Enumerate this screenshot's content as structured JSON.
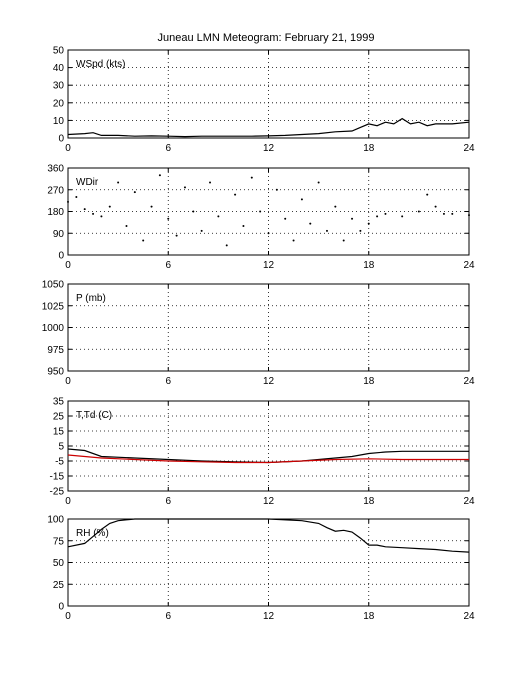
{
  "title": "Juneau LMN Meteogram:  February 21, 1999",
  "chart_data": [
    {
      "type": "line",
      "label": "WSpd (kts)",
      "xlim": [
        0,
        24
      ],
      "xticks": [
        0,
        6,
        12,
        18,
        24
      ],
      "ylim": [
        0,
        50
      ],
      "yticks": [
        0,
        10,
        20,
        30,
        40,
        50
      ],
      "grid": true,
      "series": [
        {
          "color": "#000000",
          "points": [
            [
              0,
              2
            ],
            [
              1,
              2.5
            ],
            [
              1.5,
              3
            ],
            [
              2,
              1.5
            ],
            [
              3,
              1.5
            ],
            [
              4,
              1
            ],
            [
              5,
              1.2
            ],
            [
              6,
              1
            ],
            [
              7,
              0.8
            ],
            [
              8,
              1
            ],
            [
              9,
              1
            ],
            [
              10,
              1
            ],
            [
              11,
              1
            ],
            [
              12,
              1.2
            ],
            [
              13,
              1.5
            ],
            [
              14,
              2
            ],
            [
              15,
              2.5
            ],
            [
              16,
              3.5
            ],
            [
              17,
              4
            ],
            [
              17.5,
              6
            ],
            [
              18,
              8
            ],
            [
              18.5,
              7
            ],
            [
              19,
              9
            ],
            [
              19.5,
              8
            ],
            [
              20,
              11
            ],
            [
              20.5,
              8
            ],
            [
              21,
              9
            ],
            [
              21.5,
              7
            ],
            [
              22,
              8
            ],
            [
              23,
              8
            ],
            [
              24,
              9
            ]
          ]
        }
      ]
    },
    {
      "type": "scatter",
      "label": "WDir",
      "xlim": [
        0,
        24
      ],
      "xticks": [
        0,
        6,
        12,
        18,
        24
      ],
      "ylim": [
        0,
        360
      ],
      "yticks": [
        0,
        90,
        180,
        270,
        360
      ],
      "grid": true,
      "series": [
        {
          "color": "#000000",
          "points": [
            [
              0,
              220
            ],
            [
              0.5,
              240
            ],
            [
              1,
              190
            ],
            [
              1.5,
              170
            ],
            [
              2,
              160
            ],
            [
              2.5,
              200
            ],
            [
              3,
              300
            ],
            [
              3.5,
              120
            ],
            [
              4,
              260
            ],
            [
              4.5,
              60
            ],
            [
              5,
              200
            ],
            [
              5.5,
              330
            ],
            [
              6,
              150
            ],
            [
              6.5,
              80
            ],
            [
              7,
              280
            ],
            [
              7.5,
              180
            ],
            [
              8,
              100
            ],
            [
              8.5,
              300
            ],
            [
              9,
              160
            ],
            [
              9.5,
              40
            ],
            [
              10,
              250
            ],
            [
              10.5,
              120
            ],
            [
              11,
              320
            ],
            [
              11.5,
              180
            ],
            [
              12,
              90
            ],
            [
              12.5,
              270
            ],
            [
              13,
              150
            ],
            [
              13.5,
              60
            ],
            [
              14,
              230
            ],
            [
              14.5,
              130
            ],
            [
              15,
              300
            ],
            [
              15.5,
              100
            ],
            [
              16,
              200
            ],
            [
              16.5,
              60
            ],
            [
              17,
              150
            ],
            [
              17.5,
              100
            ],
            [
              18,
              130
            ],
            [
              18.5,
              160
            ],
            [
              19,
              170
            ],
            [
              20,
              160
            ],
            [
              21,
              180
            ],
            [
              21.5,
              250
            ],
            [
              22,
              200
            ],
            [
              22.5,
              170
            ],
            [
              23,
              170
            ],
            [
              24,
              165
            ]
          ]
        }
      ]
    },
    {
      "type": "line",
      "label": "P (mb)",
      "xlim": [
        0,
        24
      ],
      "xticks": [
        0,
        6,
        12,
        18,
        24
      ],
      "ylim": [
        950,
        1050
      ],
      "yticks": [
        950,
        975,
        1000,
        1025,
        1050
      ],
      "grid": true,
      "series": []
    },
    {
      "type": "line",
      "label": "T,Td (C)",
      "xlim": [
        0,
        24
      ],
      "xticks": [
        0,
        6,
        12,
        18,
        24
      ],
      "ylim": [
        -25,
        35
      ],
      "yticks": [
        -25,
        -15,
        -5,
        5,
        15,
        25,
        35
      ],
      "grid": true,
      "series": [
        {
          "color": "#000000",
          "points": [
            [
              0,
              3
            ],
            [
              1,
              2
            ],
            [
              2,
              -2
            ],
            [
              4,
              -3
            ],
            [
              6,
              -4
            ],
            [
              8,
              -5
            ],
            [
              10,
              -5.5
            ],
            [
              12,
              -6
            ],
            [
              14,
              -5
            ],
            [
              16,
              -3
            ],
            [
              17,
              -2
            ],
            [
              18,
              0
            ],
            [
              19,
              1
            ],
            [
              20,
              1.5
            ],
            [
              22,
              1.5
            ],
            [
              24,
              1.5
            ]
          ]
        },
        {
          "color": "#cc0000",
          "points": [
            [
              0,
              -1
            ],
            [
              2,
              -3
            ],
            [
              4,
              -4
            ],
            [
              6,
              -5
            ],
            [
              8,
              -5.5
            ],
            [
              10,
              -6
            ],
            [
              12,
              -6
            ],
            [
              14,
              -5
            ],
            [
              16,
              -4
            ],
            [
              18,
              -3.5
            ],
            [
              20,
              -4
            ],
            [
              22,
              -4
            ],
            [
              24,
              -4
            ]
          ]
        }
      ]
    },
    {
      "type": "line",
      "label": "RH (%)",
      "xlim": [
        0,
        24
      ],
      "xticks": [
        0,
        6,
        12,
        18,
        24
      ],
      "ylim": [
        0,
        100
      ],
      "yticks": [
        0,
        25,
        50,
        75,
        100
      ],
      "grid": true,
      "series": [
        {
          "color": "#000000",
          "points": [
            [
              0,
              68
            ],
            [
              1,
              72
            ],
            [
              1.5,
              80
            ],
            [
              2,
              88
            ],
            [
              2.5,
              95
            ],
            [
              3,
              98
            ],
            [
              4,
              100
            ],
            [
              6,
              100
            ],
            [
              8,
              100
            ],
            [
              10,
              100
            ],
            [
              12,
              100
            ],
            [
              14,
              98
            ],
            [
              15,
              95
            ],
            [
              15.5,
              90
            ],
            [
              16,
              86
            ],
            [
              16.5,
              87
            ],
            [
              17,
              85
            ],
            [
              17.5,
              78
            ],
            [
              18,
              70
            ],
            [
              18.5,
              70
            ],
            [
              19,
              68
            ],
            [
              20,
              67
            ],
            [
              21,
              66
            ],
            [
              22,
              65
            ],
            [
              23,
              63
            ],
            [
              24,
              62
            ]
          ]
        }
      ]
    }
  ]
}
